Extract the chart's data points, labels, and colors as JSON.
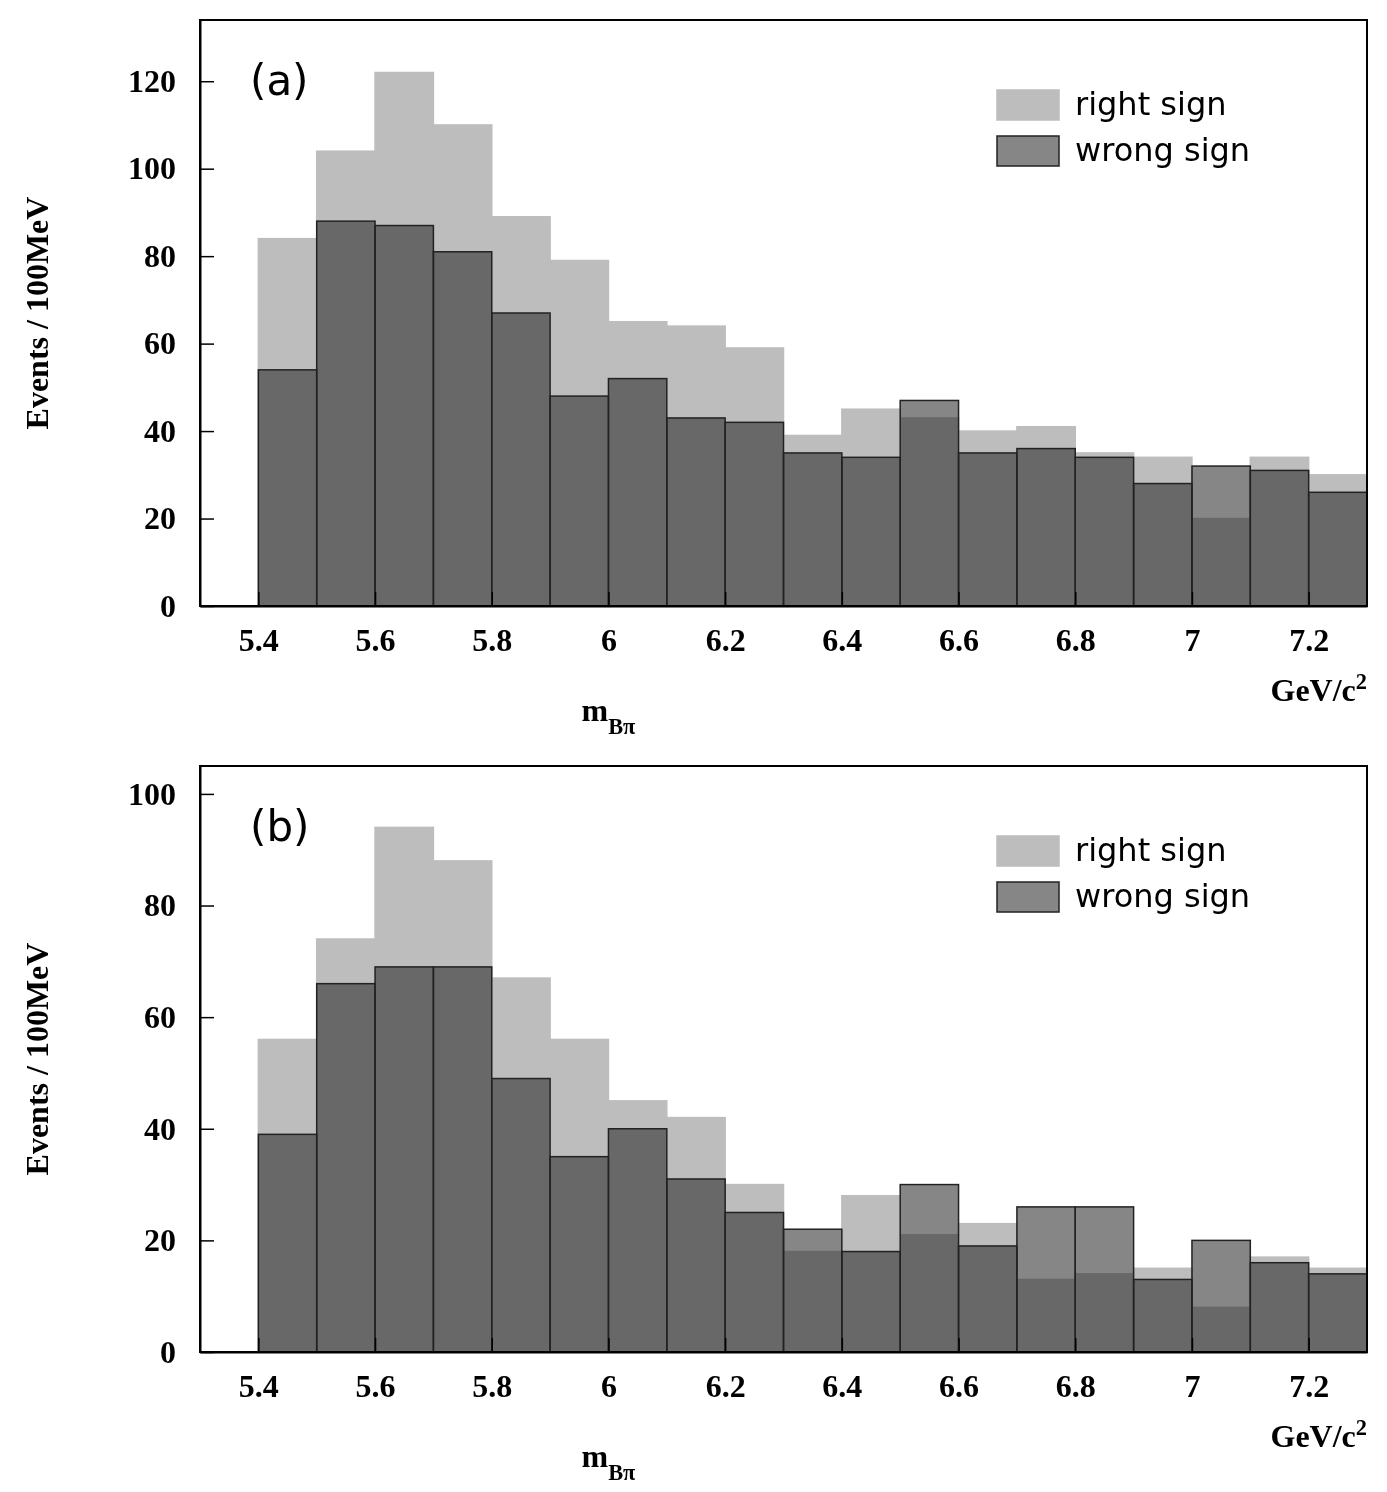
{
  "chart_data": [
    {
      "type": "histogram",
      "xlabel": "m$_{Bπ}$",
      "ylabel": "Events / 100MeV",
      "annotations": [
        "(a)",
        "GeV/c$^{2}$"
      ],
      "bins": [
        5.4,
        5.5,
        5.6,
        5.7,
        5.8,
        5.9,
        6.0,
        6.1,
        6.2,
        6.3,
        6.4,
        6.5,
        6.6,
        6.7,
        6.8,
        6.9,
        7.0,
        7.1,
        7.2,
        7.3
      ],
      "series": [
        {
          "name": "right sign",
          "color": "#bdbdbd",
          "values": [
            84,
            104,
            122,
            110,
            89,
            79,
            65,
            64,
            59,
            39,
            45,
            43,
            40,
            41,
            35,
            34,
            20,
            34,
            30
          ]
        },
        {
          "name": "wrong sign",
          "color": "#222222",
          "values": [
            54,
            88,
            87,
            81,
            67,
            48,
            52,
            43,
            42,
            35,
            34,
            47,
            35,
            36,
            34,
            28,
            32,
            31,
            26
          ]
        }
      ],
      "xlim": [
        5.3,
        7.3
      ],
      "ylim": [
        0,
        134
      ],
      "xticks": [
        5.4,
        5.6,
        5.8,
        6,
        6.2,
        6.4,
        6.6,
        6.8,
        7,
        7.2
      ],
      "yticks": [
        0,
        20,
        40,
        60,
        80,
        100,
        120
      ],
      "legend": "top right"
    },
    {
      "type": "histogram",
      "xlabel": "m$_{Bπ}$",
      "ylabel": "Events / 100MeV",
      "annotations": [
        "(b)",
        "GeV/c$^{2}$"
      ],
      "bins": [
        5.4,
        5.5,
        5.6,
        5.7,
        5.8,
        5.9,
        6.0,
        6.1,
        6.2,
        6.3,
        6.4,
        6.5,
        6.6,
        6.7,
        6.8,
        6.9,
        7.0,
        7.1,
        7.2,
        7.3
      ],
      "series": [
        {
          "name": "right sign",
          "color": "#bdbdbd",
          "values": [
            56,
            74,
            94,
            88,
            67,
            56,
            45,
            42,
            30,
            18,
            28,
            21,
            23,
            13,
            14,
            15,
            8,
            17,
            15
          ]
        },
        {
          "name": "wrong sign",
          "color": "#222222",
          "values": [
            39,
            66,
            69,
            69,
            49,
            35,
            40,
            31,
            25,
            22,
            18,
            30,
            19,
            26,
            26,
            13,
            20,
            16,
            14
          ]
        }
      ],
      "xlim": [
        5.3,
        7.3
      ],
      "ylim": [
        0,
        105
      ],
      "xticks": [
        5.4,
        5.6,
        5.8,
        6,
        6.2,
        6.4,
        6.6,
        6.8,
        7,
        7.2
      ],
      "yticks": [
        0,
        20,
        40,
        60,
        80,
        100
      ],
      "legend": "top right"
    }
  ]
}
